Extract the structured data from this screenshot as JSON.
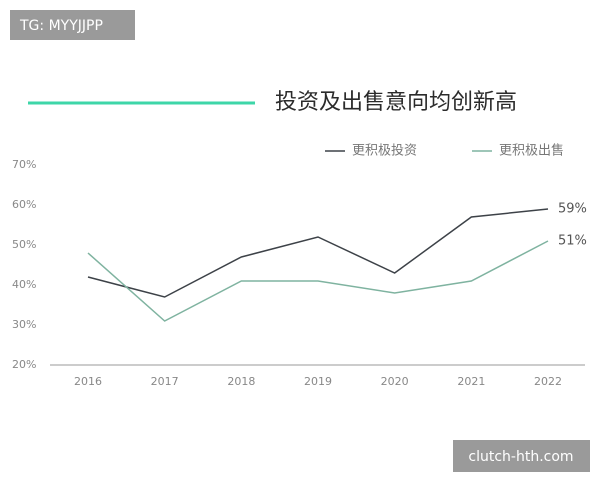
{
  "watermarks": [
    "TG: MYYJJPP",
    "clutch-hth.com"
  ],
  "chart_data": {
    "type": "line",
    "title": "投资及出售意向均创新高",
    "categories": [
      "2016",
      "2017",
      "2018",
      "2019",
      "2020",
      "2021",
      "2022"
    ],
    "series": [
      {
        "name": "更积极投资",
        "color": "#3d4248",
        "values": [
          42,
          37,
          47,
          52,
          43,
          57,
          59
        ],
        "value_labels": [
          null,
          null,
          null,
          null,
          null,
          null,
          "59%"
        ]
      },
      {
        "name": "更积极出售",
        "color": "#7fb3a0",
        "values": [
          48,
          31,
          41,
          41,
          38,
          41,
          51
        ],
        "value_labels": [
          null,
          null,
          null,
          null,
          null,
          null,
          "51%"
        ]
      }
    ],
    "ylim": [
      20,
      70
    ],
    "yticks": [
      {
        "value": 20,
        "label": "20%"
      },
      {
        "value": 30,
        "label": "30%"
      },
      {
        "value": 40,
        "label": "40%"
      },
      {
        "value": 50,
        "label": "50%"
      },
      {
        "value": 60,
        "label": "60%"
      },
      {
        "value": 70,
        "label": "70%"
      }
    ],
    "grid": false,
    "legend": "top-right"
  }
}
